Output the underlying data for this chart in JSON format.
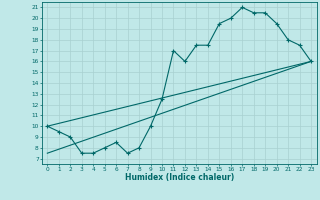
{
  "xlabel": "Humidex (Indice chaleur)",
  "bg_color": "#c0e8e8",
  "grid_color": "#a8d0d0",
  "line_color": "#006868",
  "xlim": [
    -0.5,
    23.5
  ],
  "ylim": [
    6.5,
    21.5
  ],
  "yticks": [
    7,
    8,
    9,
    10,
    11,
    12,
    13,
    14,
    15,
    16,
    17,
    18,
    19,
    20,
    21
  ],
  "xticks": [
    0,
    1,
    2,
    3,
    4,
    5,
    6,
    7,
    8,
    9,
    10,
    11,
    12,
    13,
    14,
    15,
    16,
    17,
    18,
    19,
    20,
    21,
    22,
    23
  ],
  "zigzag_x": [
    0,
    1,
    2,
    3,
    4,
    5,
    6,
    7,
    8,
    9,
    10,
    11,
    12,
    13,
    14,
    15,
    16,
    17,
    18,
    19,
    20,
    21,
    22,
    23
  ],
  "zigzag_y": [
    10,
    9.5,
    9,
    7.5,
    7.5,
    8,
    8.5,
    7.5,
    8,
    10,
    12.5,
    17,
    16,
    17.5,
    17.5,
    19.5,
    20,
    21,
    20.5,
    20.5,
    19.5,
    18,
    17.5,
    16
  ],
  "upper_line_x": [
    0,
    23
  ],
  "upper_line_y": [
    10,
    16
  ],
  "lower_line_x": [
    0,
    23
  ],
  "lower_line_y": [
    7.5,
    16
  ]
}
